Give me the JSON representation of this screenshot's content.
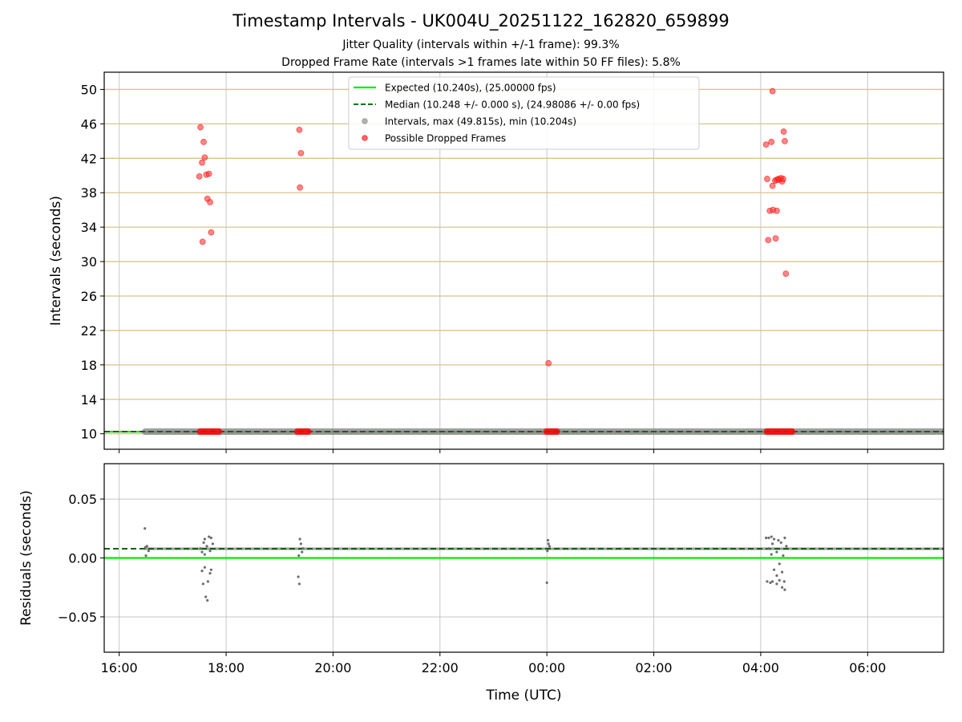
{
  "chart_data": [
    {
      "type": "scatter",
      "title": "Timestamp Intervals - UK004U_20251122_162820_659899",
      "subtitle_lines": [
        "Jitter Quality (intervals within +/-1 frame): 99.3%",
        "Dropped Frame Rate (intervals >1 frames late within 50 FF files): 5.8%"
      ],
      "xlabel": "",
      "ylabel": "Intervals (seconds)",
      "x_unit": "hours since 00:00 UTC of first day",
      "xlim": [
        15.72,
        31.42
      ],
      "ylim": [
        8.2,
        52.0
      ],
      "yticks": [
        10,
        14,
        18,
        22,
        26,
        30,
        34,
        38,
        42,
        46,
        50
      ],
      "grid": true,
      "legend_position": "top-center",
      "legend": [
        {
          "label": "Expected (10.240s), (25.00000 fps)",
          "style": "solid-line",
          "color": "#00ee00"
        },
        {
          "label": "Median (10.248 +/- 0.000 s), (24.98086 +/- 0.00 fps)",
          "style": "dashed-line",
          "color": "#007700"
        },
        {
          "label": "Intervals, max (49.815s), min (10.204s)",
          "style": "marker",
          "color": "#808080"
        },
        {
          "label": "Possible Dropped Frames",
          "style": "marker",
          "color": "#ff0000"
        }
      ],
      "expected_value": 10.24,
      "median_value": 10.248,
      "intervals_band": {
        "x_start": 16.47,
        "x_end": 31.42,
        "y": 10.248
      },
      "dropped_frames_points": [
        [
          17.52,
          45.6
        ],
        [
          17.58,
          43.9
        ],
        [
          17.6,
          42.1
        ],
        [
          17.55,
          41.5
        ],
        [
          17.5,
          39.9
        ],
        [
          17.63,
          40.1
        ],
        [
          17.68,
          40.2
        ],
        [
          17.65,
          37.3
        ],
        [
          17.7,
          36.9
        ],
        [
          17.72,
          33.4
        ],
        [
          17.56,
          32.3
        ],
        [
          19.37,
          45.3
        ],
        [
          19.4,
          42.6
        ],
        [
          19.38,
          38.6
        ],
        [
          24.03,
          18.2
        ],
        [
          28.22,
          49.8
        ],
        [
          28.1,
          43.6
        ],
        [
          28.2,
          43.9
        ],
        [
          28.43,
          45.1
        ],
        [
          28.45,
          44.0
        ],
        [
          28.12,
          39.6
        ],
        [
          28.22,
          38.8
        ],
        [
          28.27,
          39.4
        ],
        [
          28.3,
          39.5
        ],
        [
          28.33,
          39.6
        ],
        [
          28.35,
          39.5
        ],
        [
          28.38,
          39.7
        ],
        [
          28.4,
          39.3
        ],
        [
          28.42,
          39.6
        ],
        [
          28.17,
          35.9
        ],
        [
          28.23,
          36.0
        ],
        [
          28.3,
          35.9
        ],
        [
          28.14,
          32.5
        ],
        [
          28.28,
          32.7
        ],
        [
          28.47,
          28.6
        ]
      ],
      "dropped_frames_baseline_clusters": [
        {
          "x_start": 17.5,
          "x_end": 17.88,
          "y": 10.25
        },
        {
          "x_start": 19.32,
          "x_end": 19.55,
          "y": 10.25
        },
        {
          "x_start": 23.98,
          "x_end": 24.2,
          "y": 10.25
        },
        {
          "x_start": 28.1,
          "x_end": 28.6,
          "y": 10.25
        }
      ]
    },
    {
      "type": "scatter",
      "title": "",
      "xlabel": "Time (UTC)",
      "ylabel": "Residuals (seconds)",
      "x_unit": "hours since 00:00 UTC of first day",
      "xlim": [
        15.72,
        31.42
      ],
      "ylim": [
        -0.08,
        0.08
      ],
      "yticks": [
        0.05,
        0.0,
        -0.05
      ],
      "ytick_labels": [
        "0.05",
        "0.00",
        "−0.05"
      ],
      "xticks": [
        16,
        18,
        20,
        22,
        24,
        26,
        28,
        30
      ],
      "xtick_labels": [
        "16:00",
        "18:00",
        "20:00",
        "22:00",
        "00:00",
        "02:00",
        "04:00",
        "06:00"
      ],
      "grid": true,
      "expected_residual": 0.0,
      "median_residual": 0.0078,
      "residual_band": {
        "x_start": 16.47,
        "x_end": 31.42,
        "y": 0.0078
      },
      "residual_points": [
        [
          16.48,
          0.025
        ],
        [
          16.49,
          0.009
        ],
        [
          16.5,
          0.002
        ],
        [
          16.52,
          0.01
        ],
        [
          16.55,
          0.006
        ],
        [
          17.55,
          -0.011
        ],
        [
          17.57,
          -0.022
        ],
        [
          17.6,
          -0.008
        ],
        [
          17.62,
          -0.033
        ],
        [
          17.65,
          -0.036
        ],
        [
          17.66,
          -0.02
        ],
        [
          17.7,
          -0.013
        ],
        [
          17.72,
          -0.01
        ],
        [
          17.6,
          0.016
        ],
        [
          17.68,
          0.018
        ],
        [
          17.72,
          0.017
        ],
        [
          17.58,
          0.013
        ],
        [
          17.64,
          0.01
        ],
        [
          17.75,
          0.012
        ],
        [
          17.55,
          0.005
        ],
        [
          17.6,
          0.003
        ],
        [
          17.7,
          0.006
        ],
        [
          17.52,
          0.008
        ],
        [
          19.35,
          -0.016
        ],
        [
          19.37,
          -0.022
        ],
        [
          19.38,
          0.016
        ],
        [
          19.4,
          0.012
        ],
        [
          19.42,
          0.005
        ],
        [
          19.36,
          0.002
        ],
        [
          19.44,
          0.008
        ],
        [
          24.0,
          -0.021
        ],
        [
          24.02,
          0.015
        ],
        [
          24.03,
          0.012
        ],
        [
          24.05,
          0.01
        ],
        [
          24.01,
          0.006
        ],
        [
          28.1,
          0.017
        ],
        [
          28.15,
          0.017
        ],
        [
          28.2,
          0.018
        ],
        [
          28.25,
          0.016
        ],
        [
          28.33,
          0.015
        ],
        [
          28.45,
          0.017
        ],
        [
          28.12,
          -0.02
        ],
        [
          28.18,
          -0.021
        ],
        [
          28.22,
          -0.02
        ],
        [
          28.3,
          -0.022
        ],
        [
          28.35,
          -0.019
        ],
        [
          28.4,
          -0.025
        ],
        [
          28.45,
          -0.027
        ],
        [
          28.44,
          -0.02
        ],
        [
          28.3,
          -0.015
        ],
        [
          28.25,
          -0.01
        ],
        [
          28.35,
          -0.005
        ],
        [
          28.4,
          -0.012
        ],
        [
          28.2,
          0.003
        ],
        [
          28.3,
          0.005
        ],
        [
          28.42,
          0.002
        ],
        [
          28.22,
          0.012
        ],
        [
          28.38,
          0.013
        ],
        [
          28.15,
          0.008
        ],
        [
          28.48,
          0.01
        ]
      ]
    }
  ]
}
